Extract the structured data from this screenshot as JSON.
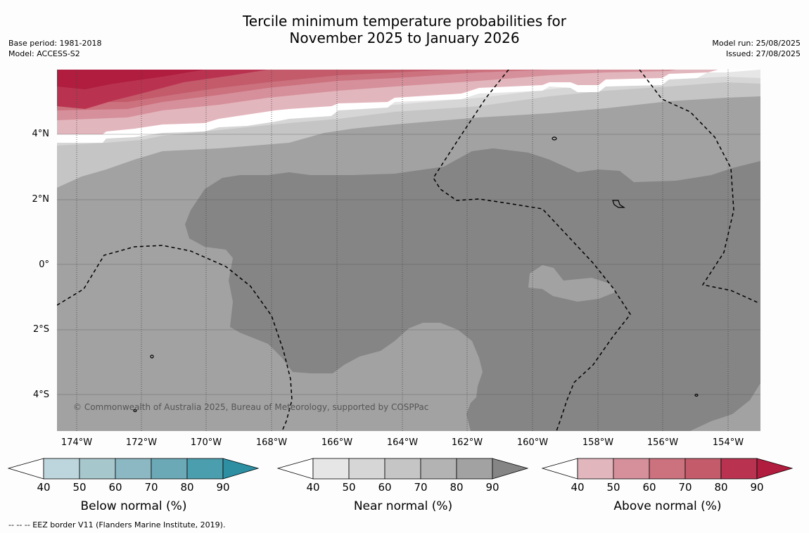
{
  "header": {
    "title_line1": "Tercile minimum temperature probabilities for",
    "title_line2": "November 2025 to January 2026",
    "base_period": "Base period: 1981-2018",
    "model": "Model: ACCESS-S2",
    "model_run": "Model run: 25/08/2025",
    "issued": "Issued: 27/08/2025"
  },
  "map": {
    "lat_labels": [
      "4°N",
      "2°N",
      "0°",
      "2°S",
      "4°S"
    ],
    "lon_labels": [
      "174°W",
      "172°W",
      "170°W",
      "168°W",
      "166°W",
      "164°W",
      "162°W",
      "160°W",
      "158°W",
      "156°W",
      "154°W"
    ],
    "copyright": "© Commonwealth of Australia 2025, Bureau of Meteorology, supported by COSPPac",
    "colors": {
      "near_40_50": "#e6e6e6",
      "near_50_60": "#d6d6d6",
      "near_60_70": "#c5c5c5",
      "near_70_80": "#b3b3b3",
      "near_80_90": "#a2a2a2",
      "near_90": "#858585",
      "above_40_50": "#e2b6bd",
      "above_50_60": "#d5909b",
      "above_60_70": "#cc717e",
      "above_70_80": "#c35b6b",
      "above_80_90": "#b93350",
      "above_90": "#b01d3e"
    }
  },
  "legends": [
    {
      "title": "Below normal (%)",
      "ticks": [
        "40",
        "50",
        "60",
        "70",
        "80",
        "90"
      ],
      "colors": [
        "#ffffff",
        "#bdd6dd",
        "#a6c7cc",
        "#8bb8c3",
        "#6ca9b7",
        "#4b9eae",
        "#2e8fa3"
      ]
    },
    {
      "title": "Near normal (%)",
      "ticks": [
        "40",
        "50",
        "60",
        "70",
        "80",
        "90"
      ],
      "colors": [
        "#ffffff",
        "#e6e6e6",
        "#d6d6d6",
        "#c5c5c5",
        "#b3b3b3",
        "#a2a2a2",
        "#858585"
      ]
    },
    {
      "title": "Above normal (%)",
      "ticks": [
        "40",
        "50",
        "60",
        "70",
        "80",
        "90"
      ],
      "colors": [
        "#ffffff",
        "#e2b6bd",
        "#d5909b",
        "#cc717e",
        "#c35b6b",
        "#b93350",
        "#b01d3e"
      ]
    }
  ],
  "footnote": "-- -- -- EEZ border V11 (Flanders Marine Institute, 2019)."
}
